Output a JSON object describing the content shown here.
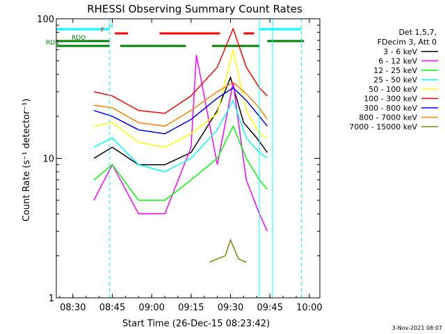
{
  "chart_data": {
    "type": "line",
    "title": "RHESSI Observing Summary Count Rates",
    "xlabel": "Start Time (26-Dec-15 08:23:42)",
    "ylabel": "Count Rate (s⁻¹ detector⁻¹)",
    "yscale": "log",
    "ylim": [
      1,
      100
    ],
    "xlim_minutes": [
      "08:23:42",
      "10:04:00"
    ],
    "x_ticks": [
      "08:30",
      "08:45",
      "09:00",
      "09:15",
      "09:30",
      "09:45",
      "10:00"
    ],
    "y_ticks": [
      "1",
      "10",
      "100"
    ],
    "legend_header": [
      "Det 1,5,7,",
      "FDecim 3, Att 0"
    ],
    "legend_placement": "right",
    "footer_date": "3-Nov-2021 08:07",
    "series": [
      {
        "name": "3 - 6 keV",
        "color": "#000000",
        "x": [
          "08:38",
          "08:45",
          "08:55",
          "09:05",
          "09:15",
          "09:25",
          "09:30",
          "09:35",
          "09:40",
          "09:44"
        ],
        "values": [
          10,
          12,
          9,
          9,
          11,
          22,
          38,
          18,
          14,
          11
        ]
      },
      {
        "name": "6 - 12 keV",
        "color": "#ff00ff",
        "x": [
          "08:38",
          "08:45",
          "08:55",
          "09:05",
          "09:15",
          "09:17",
          "09:25",
          "09:31",
          "09:36",
          "09:41",
          "09:44"
        ],
        "values": [
          5,
          9,
          4,
          4,
          12,
          55,
          9,
          35,
          7,
          4,
          3
        ]
      },
      {
        "name": "12 - 25 keV",
        "color": "#00ff00",
        "x": [
          "08:38",
          "08:45",
          "08:55",
          "09:05",
          "09:15",
          "09:25",
          "09:31",
          "09:36",
          "09:41",
          "09:44"
        ],
        "values": [
          7,
          9,
          5,
          5,
          7,
          10,
          17,
          10,
          7,
          6
        ]
      },
      {
        "name": "25 - 50 keV",
        "color": "#00ffff",
        "x": [
          "08:38",
          "08:45",
          "08:55",
          "09:05",
          "09:15",
          "09:25",
          "09:31",
          "09:36",
          "09:41",
          "09:44"
        ],
        "values": [
          12,
          14,
          9,
          8,
          10,
          16,
          26,
          14,
          11,
          10
        ]
      },
      {
        "name": "50 - 100 keV",
        "color": "#ffff00",
        "x": [
          "08:38",
          "08:45",
          "08:55",
          "09:05",
          "09:15",
          "09:25",
          "09:31",
          "09:36",
          "09:41",
          "09:44"
        ],
        "values": [
          17,
          18,
          13,
          12,
          15,
          21,
          60,
          22,
          15,
          14
        ]
      },
      {
        "name": "100 - 300 keV",
        "color": "#ff0000",
        "x": [
          "08:38",
          "08:45",
          "08:55",
          "09:05",
          "09:15",
          "09:25",
          "09:31",
          "09:36",
          "09:41",
          "09:44"
        ],
        "values": [
          30,
          28,
          22,
          21,
          28,
          45,
          85,
          45,
          32,
          28
        ]
      },
      {
        "name": "300 - 800 keV",
        "color": "#0000ff",
        "x": [
          "08:38",
          "08:45",
          "08:55",
          "09:05",
          "09:15",
          "09:25",
          "09:31",
          "09:36",
          "09:41",
          "09:44"
        ],
        "values": [
          22,
          20,
          16,
          15,
          19,
          27,
          32,
          26,
          20,
          17
        ]
      },
      {
        "name": "800 - 7000 keV",
        "color": "#ff8000",
        "x": [
          "08:38",
          "08:45",
          "08:55",
          "09:05",
          "09:15",
          "09:25",
          "09:31",
          "09:36",
          "09:41",
          "09:44"
        ],
        "values": [
          24,
          23,
          18,
          17,
          22,
          30,
          35,
          29,
          23,
          19
        ]
      },
      {
        "name": "7000 - 15000 keV",
        "color": "#808000",
        "x": [
          "09:22",
          "09:25",
          "09:28",
          "09:30",
          "09:33",
          "09:36"
        ],
        "values": [
          1.8,
          1.9,
          2.0,
          2.6,
          1.9,
          1.8
        ]
      }
    ],
    "flag_bars": [
      {
        "label": "N",
        "color": "#00ffff",
        "segments": [
          [
            "08:23:42",
            "08:44"
          ],
          [
            "09:41",
            "09:57"
          ]
        ]
      },
      {
        "label": "F",
        "color": "#ff0000",
        "segments": [
          [
            "08:46",
            "08:51"
          ],
          [
            "09:03",
            "09:26"
          ],
          [
            "09:35",
            "09:39"
          ]
        ]
      },
      {
        "label": "RDO",
        "color": "#008000",
        "segments": [
          [
            "08:24",
            "08:44"
          ],
          [
            "09:44",
            "09:58"
          ]
        ]
      },
      {
        "label": "RDS",
        "color": "#008000",
        "segments": [
          [
            "08:24",
            "08:44"
          ],
          [
            "08:48",
            "09:13"
          ],
          [
            "09:23",
            "09:41"
          ]
        ]
      }
    ]
  }
}
